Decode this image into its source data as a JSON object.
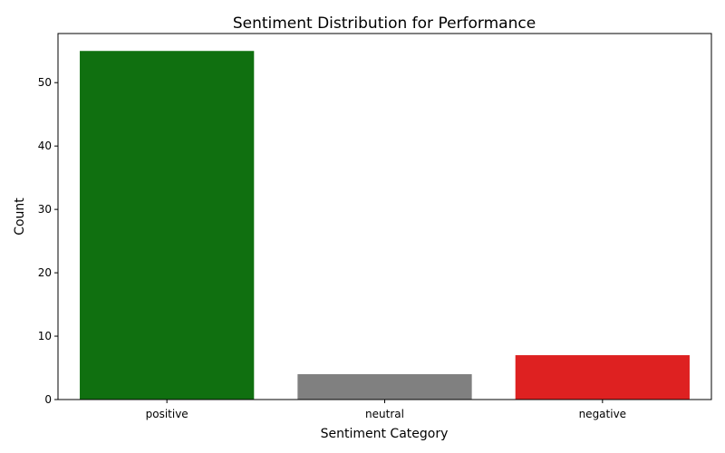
{
  "chart_data": {
    "type": "bar",
    "title": "Sentiment Distribution for Performance",
    "xlabel": "Sentiment Category",
    "ylabel": "Count",
    "categories": [
      "positive",
      "neutral",
      "negative"
    ],
    "values": [
      55,
      4,
      7
    ],
    "colors": [
      "#107010",
      "#808080",
      "#de2121"
    ],
    "ylim": [
      0,
      57.75
    ],
    "yticks": [
      0,
      10,
      20,
      30,
      40,
      50
    ],
    "grid": false,
    "legend": "none"
  }
}
